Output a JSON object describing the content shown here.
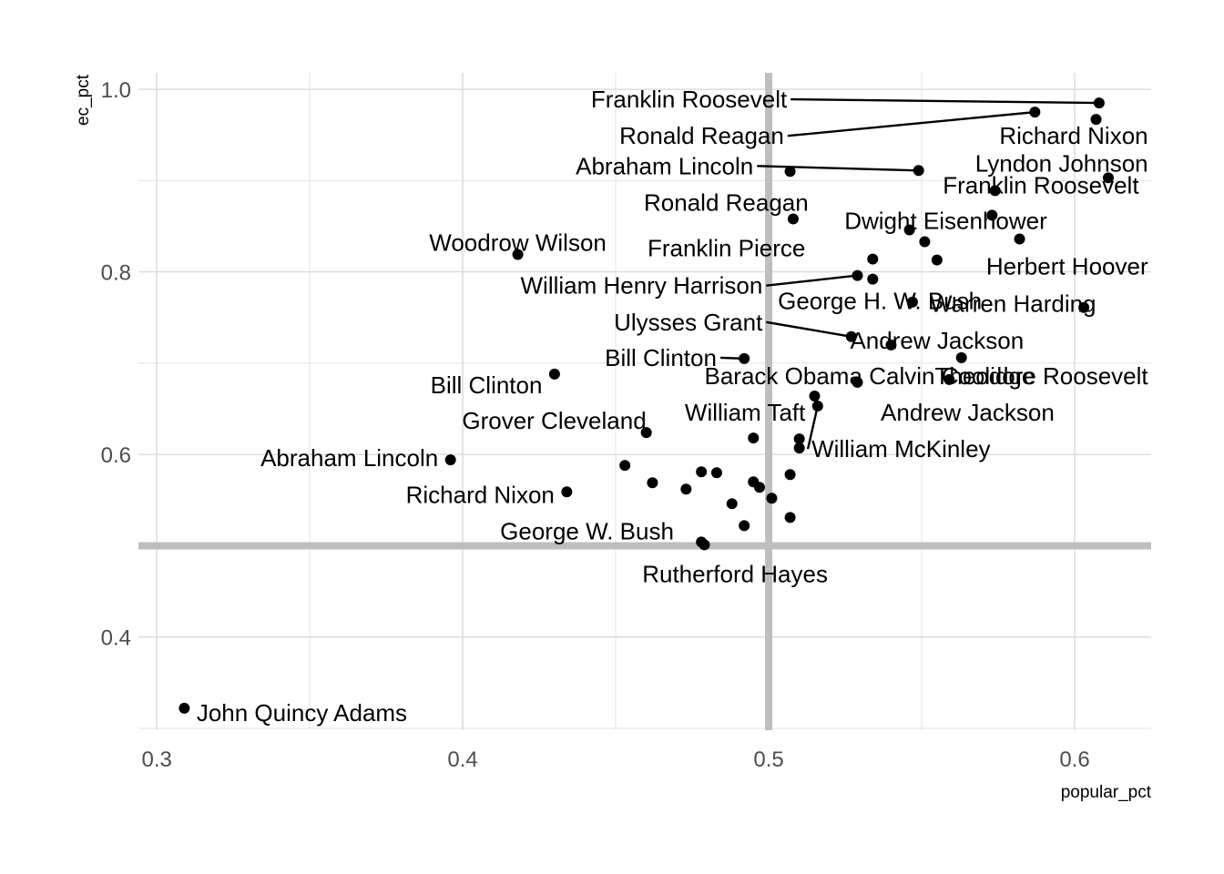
{
  "chart_data": {
    "type": "scatter",
    "xlabel": "popular_pct",
    "ylabel": "ec_pct",
    "xlim": [
      0.294,
      0.625
    ],
    "ylim": [
      0.298,
      1.018
    ],
    "x_ticks": [
      0.3,
      0.4,
      0.5,
      0.6
    ],
    "x_tick_labels": [
      "0.3",
      "0.4",
      "0.5",
      "0.6"
    ],
    "y_ticks": [
      0.4,
      0.6,
      0.8,
      1.0
    ],
    "y_tick_labels": [
      "0.4",
      "0.6",
      "0.8",
      "1.0"
    ],
    "reference_lines": {
      "x": 0.5,
      "y": 0.5,
      "color": "#bebebe"
    },
    "grid": true,
    "point_color": "#000000",
    "points": [
      {
        "x": 0.608,
        "y": 0.985
      },
      {
        "x": 0.587,
        "y": 0.975
      },
      {
        "x": 0.607,
        "y": 0.967
      },
      {
        "x": 0.611,
        "y": 0.903
      },
      {
        "x": 0.507,
        "y": 0.91
      },
      {
        "x": 0.549,
        "y": 0.911
      },
      {
        "x": 0.574,
        "y": 0.889
      },
      {
        "x": 0.573,
        "y": 0.862
      },
      {
        "x": 0.508,
        "y": 0.858
      },
      {
        "x": 0.546,
        "y": 0.846
      },
      {
        "x": 0.551,
        "y": 0.833
      },
      {
        "x": 0.582,
        "y": 0.836
      },
      {
        "x": 0.534,
        "y": 0.814
      },
      {
        "x": 0.555,
        "y": 0.813
      },
      {
        "x": 0.418,
        "y": 0.819
      },
      {
        "x": 0.529,
        "y": 0.796
      },
      {
        "x": 0.534,
        "y": 0.792
      },
      {
        "x": 0.547,
        "y": 0.767
      },
      {
        "x": 0.603,
        "y": 0.761
      },
      {
        "x": 0.527,
        "y": 0.729
      },
      {
        "x": 0.54,
        "y": 0.72
      },
      {
        "x": 0.563,
        "y": 0.706
      },
      {
        "x": 0.492,
        "y": 0.705
      },
      {
        "x": 0.43,
        "y": 0.688
      },
      {
        "x": 0.559,
        "y": 0.682
      },
      {
        "x": 0.529,
        "y": 0.679
      },
      {
        "x": 0.515,
        "y": 0.664
      },
      {
        "x": 0.516,
        "y": 0.653
      },
      {
        "x": 0.46,
        "y": 0.624
      },
      {
        "x": 0.495,
        "y": 0.618
      },
      {
        "x": 0.51,
        "y": 0.617
      },
      {
        "x": 0.51,
        "y": 0.607
      },
      {
        "x": 0.396,
        "y": 0.594
      },
      {
        "x": 0.453,
        "y": 0.588
      },
      {
        "x": 0.478,
        "y": 0.581
      },
      {
        "x": 0.483,
        "y": 0.58
      },
      {
        "x": 0.507,
        "y": 0.578
      },
      {
        "x": 0.462,
        "y": 0.569
      },
      {
        "x": 0.495,
        "y": 0.57
      },
      {
        "x": 0.497,
        "y": 0.564
      },
      {
        "x": 0.473,
        "y": 0.562
      },
      {
        "x": 0.434,
        "y": 0.559
      },
      {
        "x": 0.501,
        "y": 0.552
      },
      {
        "x": 0.488,
        "y": 0.546
      },
      {
        "x": 0.507,
        "y": 0.531
      },
      {
        "x": 0.492,
        "y": 0.522
      },
      {
        "x": 0.478,
        "y": 0.504
      },
      {
        "x": 0.479,
        "y": 0.501
      },
      {
        "x": 0.309,
        "y": 0.322
      }
    ],
    "labels": [
      {
        "text": "Franklin Roosevelt",
        "lx": 0.506,
        "ly": 0.98,
        "anchor": "end",
        "px": 0.608,
        "py": 0.985,
        "leader": true
      },
      {
        "text": "Ronald Reagan",
        "lx": 0.505,
        "ly": 0.94,
        "anchor": "end",
        "px": 0.587,
        "py": 0.975,
        "leader": true
      },
      {
        "text": "Richard Nixon",
        "lx": 0.624,
        "ly": 0.94,
        "anchor": "end",
        "px": 0.607,
        "py": 0.967,
        "leader": false
      },
      {
        "text": "Abraham Lincoln",
        "lx": 0.495,
        "ly": 0.907,
        "anchor": "end",
        "px": 0.549,
        "py": 0.911,
        "leader": true
      },
      {
        "text": "Lyndon Johnson",
        "lx": 0.624,
        "ly": 0.91,
        "anchor": "end",
        "px": 0.611,
        "py": 0.903,
        "leader": false
      },
      {
        "text": "Franklin Roosevelt",
        "lx": 0.621,
        "ly": 0.886,
        "anchor": "end",
        "px": 0.611,
        "py": 0.903,
        "leader": false
      },
      {
        "text": "Ronald Reagan",
        "lx": 0.513,
        "ly": 0.867,
        "anchor": "end",
        "px": 0.508,
        "py": 0.858,
        "leader": false
      },
      {
        "text": "Dwight Eisenhower",
        "lx": 0.591,
        "ly": 0.847,
        "anchor": "end",
        "px": 0.573,
        "py": 0.862,
        "leader": false
      },
      {
        "text": "Woodrow Wilson",
        "lx": 0.418,
        "ly": 0.823,
        "anchor": "middle",
        "px": 0.418,
        "py": 0.819,
        "leader": false
      },
      {
        "text": "Franklin Pierce",
        "lx": 0.512,
        "ly": 0.817,
        "anchor": "end",
        "px": 0.508,
        "py": 0.858,
        "leader": false
      },
      {
        "text": "Herbert Hoover",
        "lx": 0.624,
        "ly": 0.797,
        "anchor": "end",
        "px": 0.582,
        "py": 0.836,
        "leader": false
      },
      {
        "text": "William Henry Harrison",
        "lx": 0.498,
        "ly": 0.776,
        "anchor": "end",
        "px": 0.529,
        "py": 0.796,
        "leader": true
      },
      {
        "text": "George H. W. Bush",
        "lx": 0.503,
        "ly": 0.759,
        "anchor": "start",
        "px": 0.534,
        "py": 0.792,
        "leader": false
      },
      {
        "text": "Warren Harding",
        "lx": 0.607,
        "ly": 0.756,
        "anchor": "end",
        "px": 0.603,
        "py": 0.761,
        "leader": false
      },
      {
        "text": "Ulysses Grant",
        "lx": 0.498,
        "ly": 0.736,
        "anchor": "end",
        "px": 0.527,
        "py": 0.729,
        "leader": true
      },
      {
        "text": "Andrew Jackson",
        "lx": 0.555,
        "ly": 0.716,
        "anchor": "middle",
        "px": 0.54,
        "py": 0.72,
        "leader": false
      },
      {
        "text": "Bill Clinton",
        "lx": 0.483,
        "ly": 0.697,
        "anchor": "end",
        "px": 0.492,
        "py": 0.705,
        "leader": true
      },
      {
        "text": "Barack Obama",
        "lx": 0.479,
        "ly": 0.677,
        "anchor": "start",
        "px": 0.529,
        "py": 0.679,
        "leader": false
      },
      {
        "text": "Calvin Coolidge",
        "lx": 0.587,
        "ly": 0.677,
        "anchor": "end",
        "px": 0.559,
        "py": 0.682,
        "leader": false
      },
      {
        "text": "Theodore Roosevelt",
        "lx": 0.624,
        "ly": 0.677,
        "anchor": "end",
        "px": 0.563,
        "py": 0.706,
        "leader": false
      },
      {
        "text": "Bill Clinton",
        "lx": 0.426,
        "ly": 0.667,
        "anchor": "end",
        "px": 0.43,
        "py": 0.688,
        "leader": false
      },
      {
        "text": "William Taft",
        "lx": 0.512,
        "ly": 0.637,
        "anchor": "end",
        "px": 0.515,
        "py": 0.664,
        "leader": false
      },
      {
        "text": "Andrew Jackson",
        "lx": 0.565,
        "ly": 0.637,
        "anchor": "middle",
        "px": 0.559,
        "py": 0.682,
        "leader": false
      },
      {
        "text": "Grover Cleveland",
        "lx": 0.46,
        "ly": 0.628,
        "anchor": "end",
        "px": 0.46,
        "py": 0.624,
        "leader": false
      },
      {
        "text": "William McKinley",
        "lx": 0.514,
        "ly": 0.597,
        "anchor": "start",
        "px": 0.516,
        "py": 0.653,
        "leader": true
      },
      {
        "text": "Abraham Lincoln",
        "lx": 0.392,
        "ly": 0.587,
        "anchor": "end",
        "px": 0.396,
        "py": 0.594,
        "leader": false
      },
      {
        "text": "Richard Nixon",
        "lx": 0.43,
        "ly": 0.547,
        "anchor": "end",
        "px": 0.434,
        "py": 0.559,
        "leader": false
      },
      {
        "text": "George W. Bush",
        "lx": 0.469,
        "ly": 0.507,
        "anchor": "end",
        "px": 0.478,
        "py": 0.504,
        "leader": false
      },
      {
        "text": "Rutherford Hayes",
        "lx": 0.489,
        "ly": 0.46,
        "anchor": "middle",
        "px": 0.479,
        "py": 0.501,
        "leader": false
      },
      {
        "text": "John Quincy Adams",
        "lx": 0.313,
        "ly": 0.308,
        "anchor": "start",
        "px": 0.309,
        "py": 0.322,
        "leader": false
      }
    ]
  }
}
